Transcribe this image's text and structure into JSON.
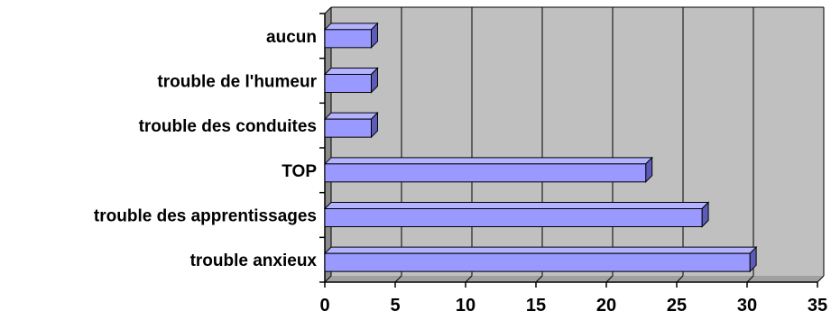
{
  "chart_data": {
    "type": "bar",
    "orientation": "horizontal",
    "style": "3d",
    "categories": [
      "aucun",
      "trouble de l'humeur",
      "trouble des conduites",
      "TOP",
      "trouble des apprentissages",
      "trouble anxieux"
    ],
    "values": [
      3.3,
      3.3,
      3.3,
      22.8,
      26.8,
      30.2
    ],
    "title": "",
    "xlabel": "",
    "ylabel": "",
    "xlim": [
      0,
      35
    ],
    "xticks": [
      0,
      5,
      10,
      15,
      20,
      25,
      30,
      35
    ],
    "grid": "vertical",
    "legend": "none",
    "colors": {
      "bar_front": "#9999ff",
      "bar_top": "#b3b3ff",
      "bar_side": "#5c5cb8",
      "plot_bg": "#c0c0c0",
      "grid": "#000000"
    }
  }
}
